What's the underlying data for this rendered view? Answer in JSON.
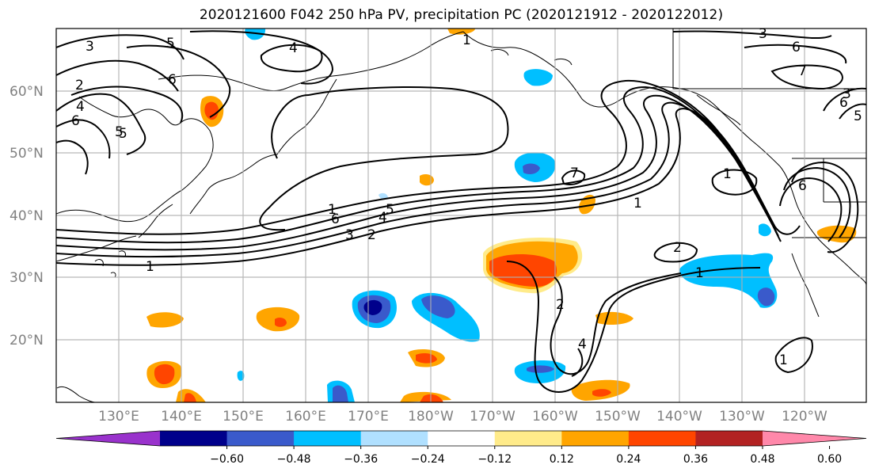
{
  "title": "2020121600 F042 250 hPa PV, precipitation PC (2020121912 - 2020122012)",
  "axes": {
    "lat_labels": [
      "60°N",
      "50°N",
      "40°N",
      "30°N",
      "20°N"
    ],
    "lon_labels": [
      "130°E",
      "140°E",
      "150°E",
      "160°E",
      "170°E",
      "180°W",
      "170°W",
      "160°W",
      "150°W",
      "140°W",
      "130°W",
      "120°W"
    ]
  },
  "colorbar": {
    "tick_labels": [
      "−0.60",
      "−0.48",
      "−0.36",
      "−0.24",
      "−0.12",
      "0.12",
      "0.24",
      "0.36",
      "0.48",
      "0.60"
    ],
    "colors": [
      "#9932cc",
      "#00008b",
      "#3a5acb",
      "#00bfff",
      "#b0e0ff",
      "#ffffff",
      "#ffeb8a",
      "#ffa500",
      "#ff4500",
      "#b22222",
      "#ff88aa"
    ]
  },
  "contour_labels": [
    "3",
    "5",
    "4",
    "1",
    "2",
    "4",
    "6",
    "5",
    "6",
    "6",
    "5",
    "4",
    "1",
    "6",
    "3",
    "2",
    "1",
    "7",
    "1",
    "2",
    "1",
    "2",
    "4",
    "1",
    "1",
    "6",
    "3",
    "5",
    "7",
    "6",
    "5",
    "3"
  ]
}
